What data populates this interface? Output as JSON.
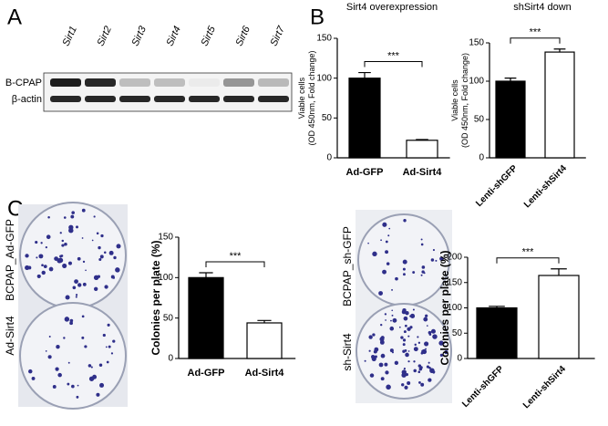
{
  "panels": [
    "A",
    "B",
    "C"
  ],
  "blot": {
    "lanes": [
      "Sirt1",
      "Sirt2",
      "Sirt3",
      "Sirt4",
      "Sirt5",
      "Sirt6",
      "Sirt7"
    ],
    "rows": [
      "B-CPAP",
      "β-actin"
    ]
  },
  "photos": [
    {
      "labels": [
        "BCPAP_Ad-GFP",
        "Ad-Sirt4"
      ]
    },
    {
      "labels": [
        "BCPAP_sh-GFP",
        "sh-Sirt4"
      ]
    }
  ],
  "chart_data": [
    {
      "type": "bar",
      "title": "Sirt4 overexpression",
      "ylabel": [
        "Viable cells",
        "(OD 450nm, Fold change)"
      ],
      "categories": [
        "Ad-GFP",
        "Ad-Sirt4"
      ],
      "values": [
        100,
        22
      ],
      "errors": [
        7,
        1
      ],
      "colors": [
        "#000000",
        "#ffffff"
      ],
      "ylim": [
        0,
        150
      ],
      "yticks": [
        0,
        50,
        100,
        150
      ],
      "annotation": "***"
    },
    {
      "type": "bar",
      "title": "shSirt4 down",
      "ylabel": [
        "Viable cells",
        "(OD 450nm, Fold change)"
      ],
      "categories": [
        "Lenti-shGFP",
        "Lenti-shSirt4"
      ],
      "values": [
        100,
        138
      ],
      "errors": [
        4,
        4
      ],
      "colors": [
        "#000000",
        "#ffffff"
      ],
      "ylim": [
        0,
        150
      ],
      "yticks": [
        0,
        50,
        100,
        150
      ],
      "annotation": "***"
    },
    {
      "type": "bar",
      "ylabel": [
        "Colonies per plate (%)"
      ],
      "categories": [
        "Ad-GFP",
        "Ad-Sirt4"
      ],
      "values": [
        100,
        44
      ],
      "errors": [
        6,
        3
      ],
      "colors": [
        "#000000",
        "#ffffff"
      ],
      "ylim": [
        0,
        150
      ],
      "yticks": [
        0,
        50,
        100,
        150
      ],
      "annotation": "***"
    },
    {
      "type": "bar",
      "ylabel": [
        "Colonies per plate (%)"
      ],
      "categories": [
        "Lenti-shGFP",
        "Lenti-shSirt4"
      ],
      "values": [
        100,
        164
      ],
      "errors": [
        3,
        13
      ],
      "colors": [
        "#000000",
        "#ffffff"
      ],
      "ylim": [
        0,
        200
      ],
      "yticks": [
        0,
        50,
        100,
        150,
        200
      ],
      "annotation": "***"
    }
  ]
}
